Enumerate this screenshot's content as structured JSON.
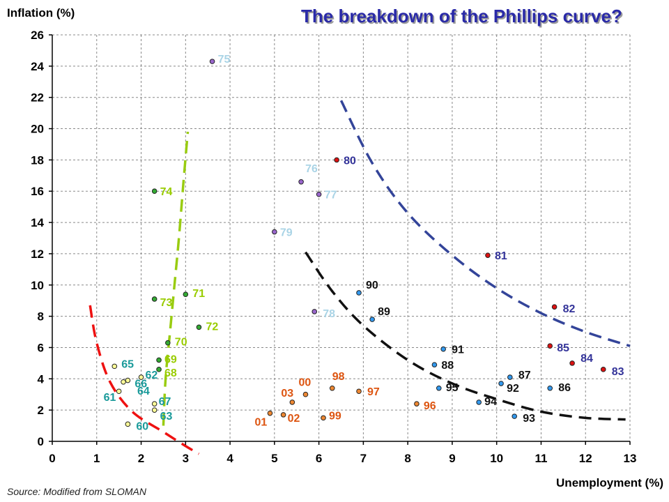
{
  "chart_data": {
    "type": "scatter",
    "title": "The breakdown of the Phillips curve?",
    "ylabel": "Inflation (%)",
    "xlabel": "Unemployment (%)",
    "source": "Source: Modified from SLOMAN",
    "xlim": [
      0,
      13
    ],
    "ylim": [
      0,
      26
    ],
    "x_ticks": [
      0,
      1,
      2,
      3,
      4,
      5,
      6,
      7,
      8,
      9,
      10,
      11,
      12,
      13
    ],
    "y_ticks": [
      0,
      2,
      4,
      6,
      8,
      10,
      12,
      14,
      16,
      18,
      20,
      22,
      24,
      26
    ],
    "grid": true,
    "points": [
      {
        "label": "60",
        "x": 1.7,
        "y": 1.1,
        "fill": "#ffff99",
        "text": "#1a9a9a"
      },
      {
        "label": "61",
        "x": 1.5,
        "y": 3.2,
        "fill": "#ffff99",
        "text": "#1a9a9a"
      },
      {
        "label": "62",
        "x": 2.0,
        "y": 4.1,
        "fill": "#ffff99",
        "text": "#1a9a9a"
      },
      {
        "label": "63",
        "x": 2.3,
        "y": 2.0,
        "fill": "#ffff99",
        "text": "#1a9a9a"
      },
      {
        "label": "64",
        "x": 1.6,
        "y": 3.8,
        "fill": "#ffff99",
        "text": "#1a9a9a"
      },
      {
        "label": "65",
        "x": 1.4,
        "y": 4.8,
        "fill": "#ffff99",
        "text": "#1a9a9a"
      },
      {
        "label": "66",
        "x": 1.7,
        "y": 3.9,
        "fill": "#ffff99",
        "text": "#1a9a9a"
      },
      {
        "label": "67",
        "x": 2.3,
        "y": 2.4,
        "fill": "#ffff99",
        "text": "#1a9a9a"
      },
      {
        "label": "68",
        "x": 2.4,
        "y": 4.6,
        "fill": "#33aa33",
        "text": "#99cc00"
      },
      {
        "label": "69",
        "x": 2.4,
        "y": 5.2,
        "fill": "#33aa33",
        "text": "#99cc00"
      },
      {
        "label": "70",
        "x": 2.6,
        "y": 6.3,
        "fill": "#33aa33",
        "text": "#99cc00"
      },
      {
        "label": "71",
        "x": 3.0,
        "y": 9.4,
        "fill": "#33aa33",
        "text": "#99cc00"
      },
      {
        "label": "72",
        "x": 3.3,
        "y": 7.3,
        "fill": "#33aa33",
        "text": "#99cc00"
      },
      {
        "label": "73",
        "x": 2.3,
        "y": 9.1,
        "fill": "#33aa33",
        "text": "#99cc00"
      },
      {
        "label": "74",
        "x": 2.3,
        "y": 16.0,
        "fill": "#33aa33",
        "text": "#99cc00"
      },
      {
        "label": "75",
        "x": 3.6,
        "y": 24.3,
        "fill": "#9966cc",
        "text": "#aad4e6"
      },
      {
        "label": "76",
        "x": 5.6,
        "y": 16.6,
        "fill": "#9966cc",
        "text": "#aad4e6"
      },
      {
        "label": "77",
        "x": 6.0,
        "y": 15.8,
        "fill": "#9966cc",
        "text": "#aad4e6"
      },
      {
        "label": "78",
        "x": 5.9,
        "y": 8.3,
        "fill": "#9966cc",
        "text": "#aad4e6"
      },
      {
        "label": "79",
        "x": 5.0,
        "y": 13.4,
        "fill": "#9966cc",
        "text": "#aad4e6"
      },
      {
        "label": "80",
        "x": 6.4,
        "y": 18.0,
        "fill": "#dd1111",
        "text": "#333399"
      },
      {
        "label": "81",
        "x": 9.8,
        "y": 11.9,
        "fill": "#dd1111",
        "text": "#333399"
      },
      {
        "label": "82",
        "x": 11.3,
        "y": 8.6,
        "fill": "#dd1111",
        "text": "#333399"
      },
      {
        "label": "83",
        "x": 12.4,
        "y": 4.6,
        "fill": "#dd1111",
        "text": "#333399"
      },
      {
        "label": "84",
        "x": 11.7,
        "y": 5.0,
        "fill": "#dd1111",
        "text": "#333399"
      },
      {
        "label": "85",
        "x": 11.2,
        "y": 6.1,
        "fill": "#dd1111",
        "text": "#333399"
      },
      {
        "label": "86",
        "x": 11.2,
        "y": 3.4,
        "fill": "#3399ee",
        "text": "#111111"
      },
      {
        "label": "87",
        "x": 10.3,
        "y": 4.1,
        "fill": "#3399ee",
        "text": "#111111"
      },
      {
        "label": "88",
        "x": 8.6,
        "y": 4.9,
        "fill": "#3399ee",
        "text": "#111111"
      },
      {
        "label": "89",
        "x": 7.2,
        "y": 7.8,
        "fill": "#3399ee",
        "text": "#111111"
      },
      {
        "label": "90",
        "x": 6.9,
        "y": 9.5,
        "fill": "#3399ee",
        "text": "#111111"
      },
      {
        "label": "91",
        "x": 8.8,
        "y": 5.9,
        "fill": "#3399ee",
        "text": "#111111"
      },
      {
        "label": "92",
        "x": 10.1,
        "y": 3.7,
        "fill": "#3399ee",
        "text": "#111111"
      },
      {
        "label": "93",
        "x": 10.4,
        "y": 1.6,
        "fill": "#3399ee",
        "text": "#111111"
      },
      {
        "label": "94",
        "x": 9.6,
        "y": 2.5,
        "fill": "#3399ee",
        "text": "#111111"
      },
      {
        "label": "95",
        "x": 8.7,
        "y": 3.4,
        "fill": "#3399ee",
        "text": "#111111"
      },
      {
        "label": "96",
        "x": 8.2,
        "y": 2.4,
        "fill": "#ee8833",
        "text": "#dd5511"
      },
      {
        "label": "97",
        "x": 6.9,
        "y": 3.2,
        "fill": "#ee8833",
        "text": "#dd5511"
      },
      {
        "label": "98",
        "x": 6.3,
        "y": 3.4,
        "fill": "#ee8833",
        "text": "#dd5511"
      },
      {
        "label": "99",
        "x": 6.1,
        "y": 1.5,
        "fill": "#ee8833",
        "text": "#dd5511"
      },
      {
        "label": "00",
        "x": 5.7,
        "y": 3.0,
        "fill": "#ee8833",
        "text": "#dd5511"
      },
      {
        "label": "01",
        "x": 4.9,
        "y": 1.8,
        "fill": "#ee8833",
        "text": "#dd5511"
      },
      {
        "label": "02",
        "x": 5.2,
        "y": 1.7,
        "fill": "#ee8833",
        "text": "#dd5511"
      },
      {
        "label": "03",
        "x": 5.4,
        "y": 2.5,
        "fill": "#ee8833",
        "text": "#dd5511"
      }
    ],
    "curves": [
      {
        "color": "#ee1111",
        "points": [
          [
            0.85,
            8.7
          ],
          [
            1.0,
            6.3
          ],
          [
            1.3,
            3.8
          ],
          [
            1.8,
            1.9
          ],
          [
            2.5,
            0.6
          ],
          [
            3.0,
            -0.3
          ],
          [
            3.3,
            -0.8
          ]
        ]
      },
      {
        "color": "#99cc11",
        "points": [
          [
            2.5,
            1.0
          ],
          [
            2.55,
            4.0
          ],
          [
            2.65,
            7.0
          ],
          [
            2.75,
            10.0
          ],
          [
            2.85,
            13.0
          ],
          [
            2.95,
            16.5
          ],
          [
            3.05,
            19.8
          ]
        ]
      },
      {
        "color": "#111111",
        "points": [
          [
            5.7,
            12.1
          ],
          [
            6.3,
            9.6
          ],
          [
            7.0,
            7.4
          ],
          [
            8.0,
            5.2
          ],
          [
            9.0,
            3.7
          ],
          [
            10.0,
            2.7
          ],
          [
            11.0,
            1.9
          ],
          [
            12.0,
            1.5
          ],
          [
            12.9,
            1.4
          ]
        ]
      },
      {
        "color": "#334499",
        "points": [
          [
            6.5,
            21.8
          ],
          [
            7.2,
            17.8
          ],
          [
            8.0,
            14.6
          ],
          [
            9.0,
            11.9
          ],
          [
            10.0,
            9.8
          ],
          [
            11.0,
            8.2
          ],
          [
            12.0,
            7.0
          ],
          [
            13.0,
            6.1
          ]
        ]
      }
    ]
  }
}
